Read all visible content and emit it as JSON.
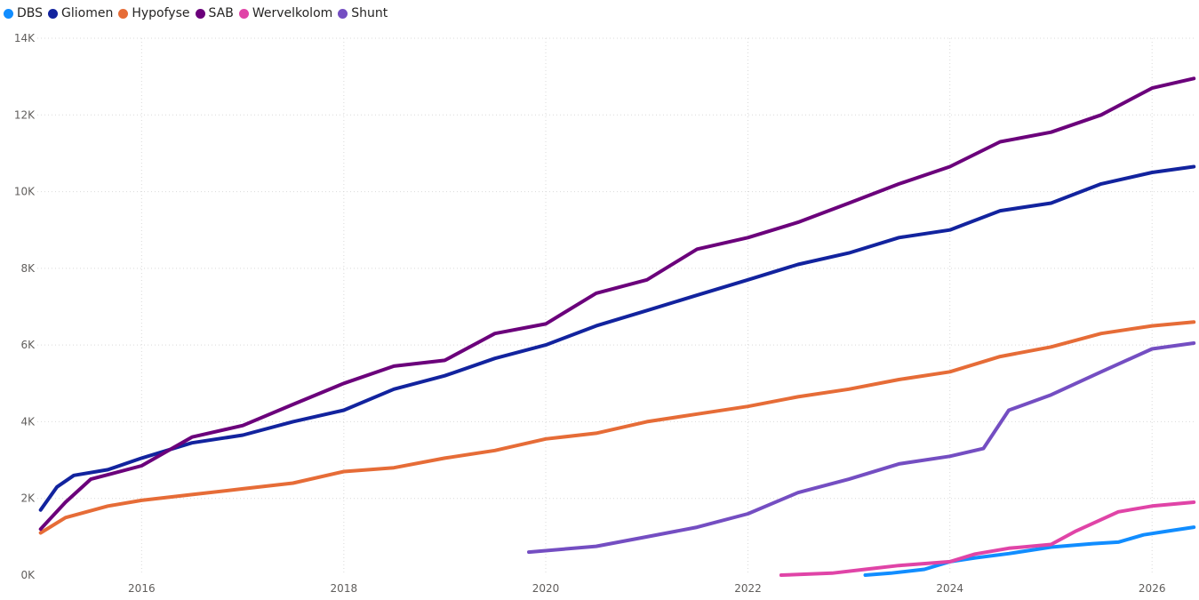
{
  "chart_data": {
    "type": "line",
    "title": "",
    "xlabel": "",
    "ylabel": "",
    "x_axis": {
      "kind": "date",
      "range": [
        "2014-12-20",
        "2026-06-10"
      ],
      "ticks": [
        {
          "date": "2016-01-01",
          "label": "2016"
        },
        {
          "date": "2018-01-01",
          "label": "2018"
        },
        {
          "date": "2020-01-01",
          "label": "2020"
        },
        {
          "date": "2022-01-01",
          "label": "2022"
        },
        {
          "date": "2024-01-01",
          "label": "2024"
        },
        {
          "date": "2026-01-01",
          "label": "2026"
        }
      ]
    },
    "y_axis": {
      "ylim": [
        0,
        14000
      ],
      "ticks": [
        {
          "value": 0,
          "label": "0K"
        },
        {
          "value": 2000,
          "label": "2K"
        },
        {
          "value": 4000,
          "label": "4K"
        },
        {
          "value": 6000,
          "label": "6K"
        },
        {
          "value": 8000,
          "label": "8K"
        },
        {
          "value": 10000,
          "label": "10K"
        },
        {
          "value": 12000,
          "label": "12K"
        },
        {
          "value": 14000,
          "label": "14K"
        }
      ]
    },
    "grid": true,
    "legend_position": "top-left",
    "series": [
      {
        "name": "DBS",
        "color": "#118DFF",
        "points": [
          [
            "2023-03-01",
            0
          ],
          [
            "2023-06-01",
            50
          ],
          [
            "2023-10-01",
            150
          ],
          [
            "2024-01-01",
            350
          ],
          [
            "2024-04-01",
            450
          ],
          [
            "2024-08-01",
            560
          ],
          [
            "2025-01-01",
            730
          ],
          [
            "2025-06-01",
            820
          ],
          [
            "2025-09-01",
            860
          ],
          [
            "2025-12-01",
            1050
          ],
          [
            "2026-03-01",
            1150
          ],
          [
            "2026-06-01",
            1250
          ]
        ]
      },
      {
        "name": "Gliomen",
        "color": "#12239E",
        "points": [
          [
            "2015-01-01",
            1700
          ],
          [
            "2015-03-01",
            2300
          ],
          [
            "2015-05-01",
            2600
          ],
          [
            "2015-09-01",
            2750
          ],
          [
            "2016-01-01",
            3050
          ],
          [
            "2016-07-01",
            3450
          ],
          [
            "2017-01-01",
            3650
          ],
          [
            "2017-07-01",
            4000
          ],
          [
            "2018-01-01",
            4300
          ],
          [
            "2018-07-01",
            4850
          ],
          [
            "2019-01-01",
            5200
          ],
          [
            "2019-07-01",
            5650
          ],
          [
            "2020-01-01",
            6000
          ],
          [
            "2020-07-01",
            6500
          ],
          [
            "2021-01-01",
            6900
          ],
          [
            "2021-07-01",
            7300
          ],
          [
            "2022-01-01",
            7700
          ],
          [
            "2022-07-01",
            8100
          ],
          [
            "2023-01-01",
            8400
          ],
          [
            "2023-07-01",
            8800
          ],
          [
            "2024-01-01",
            9000
          ],
          [
            "2024-07-01",
            9500
          ],
          [
            "2025-01-01",
            9700
          ],
          [
            "2025-07-01",
            10200
          ],
          [
            "2026-01-01",
            10500
          ],
          [
            "2026-06-01",
            10650
          ]
        ]
      },
      {
        "name": "Hypofyse",
        "color": "#E66C37",
        "points": [
          [
            "2015-01-01",
            1100
          ],
          [
            "2015-04-01",
            1500
          ],
          [
            "2015-09-01",
            1800
          ],
          [
            "2016-01-01",
            1950
          ],
          [
            "2016-07-01",
            2100
          ],
          [
            "2017-01-01",
            2250
          ],
          [
            "2017-07-01",
            2400
          ],
          [
            "2018-01-01",
            2700
          ],
          [
            "2018-07-01",
            2800
          ],
          [
            "2019-01-01",
            3050
          ],
          [
            "2019-07-01",
            3250
          ],
          [
            "2020-01-01",
            3550
          ],
          [
            "2020-07-01",
            3700
          ],
          [
            "2021-01-01",
            4000
          ],
          [
            "2021-07-01",
            4200
          ],
          [
            "2022-01-01",
            4400
          ],
          [
            "2022-07-01",
            4650
          ],
          [
            "2023-01-01",
            4850
          ],
          [
            "2023-07-01",
            5100
          ],
          [
            "2024-01-01",
            5300
          ],
          [
            "2024-07-01",
            5700
          ],
          [
            "2025-01-01",
            5950
          ],
          [
            "2025-07-01",
            6300
          ],
          [
            "2026-01-01",
            6500
          ],
          [
            "2026-06-01",
            6600
          ]
        ]
      },
      {
        "name": "SAB",
        "color": "#6B007B",
        "points": [
          [
            "2015-01-01",
            1200
          ],
          [
            "2015-04-01",
            1900
          ],
          [
            "2015-07-01",
            2500
          ],
          [
            "2016-01-01",
            2850
          ],
          [
            "2016-07-01",
            3600
          ],
          [
            "2017-01-01",
            3900
          ],
          [
            "2017-07-01",
            4450
          ],
          [
            "2018-01-01",
            5000
          ],
          [
            "2018-07-01",
            5450
          ],
          [
            "2019-01-01",
            5600
          ],
          [
            "2019-07-01",
            6300
          ],
          [
            "2020-01-01",
            6550
          ],
          [
            "2020-07-01",
            7350
          ],
          [
            "2021-01-01",
            7700
          ],
          [
            "2021-07-01",
            8500
          ],
          [
            "2022-01-01",
            8800
          ],
          [
            "2022-07-01",
            9200
          ],
          [
            "2023-01-01",
            9700
          ],
          [
            "2023-07-01",
            10200
          ],
          [
            "2024-01-01",
            10650
          ],
          [
            "2024-07-01",
            11300
          ],
          [
            "2025-01-01",
            11550
          ],
          [
            "2025-07-01",
            12000
          ],
          [
            "2026-01-01",
            12700
          ],
          [
            "2026-06-01",
            12950
          ]
        ]
      },
      {
        "name": "Wervelkolom",
        "color": "#E044A7",
        "points": [
          [
            "2022-05-01",
            0
          ],
          [
            "2022-11-01",
            50
          ],
          [
            "2023-03-01",
            150
          ],
          [
            "2023-07-01",
            250
          ],
          [
            "2024-01-01",
            350
          ],
          [
            "2024-04-01",
            550
          ],
          [
            "2024-08-01",
            700
          ],
          [
            "2025-01-01",
            800
          ],
          [
            "2025-04-01",
            1150
          ],
          [
            "2025-09-01",
            1650
          ],
          [
            "2026-01-01",
            1800
          ],
          [
            "2026-06-01",
            1900
          ]
        ]
      },
      {
        "name": "Shunt",
        "color": "#744EC2",
        "points": [
          [
            "2019-11-01",
            600
          ],
          [
            "2020-07-01",
            750
          ],
          [
            "2021-01-01",
            1000
          ],
          [
            "2021-07-01",
            1250
          ],
          [
            "2022-01-01",
            1600
          ],
          [
            "2022-07-01",
            2150
          ],
          [
            "2023-01-01",
            2500
          ],
          [
            "2023-07-01",
            2900
          ],
          [
            "2024-01-01",
            3100
          ],
          [
            "2024-05-01",
            3300
          ],
          [
            "2024-08-01",
            4300
          ],
          [
            "2025-01-01",
            4700
          ],
          [
            "2025-07-01",
            5300
          ],
          [
            "2026-01-01",
            5900
          ],
          [
            "2026-06-01",
            6050
          ]
        ]
      }
    ]
  }
}
